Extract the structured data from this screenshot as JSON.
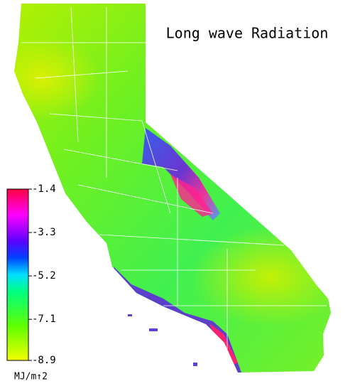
{
  "title": "Long wave Radiation",
  "colorbar": {
    "lim": [
      -8.9,
      -1.4
    ],
    "ticks": [
      -1.4,
      -3.3,
      -5.2,
      -7.1,
      -8.9
    ],
    "unit": "MJ/m↑2"
  }
}
